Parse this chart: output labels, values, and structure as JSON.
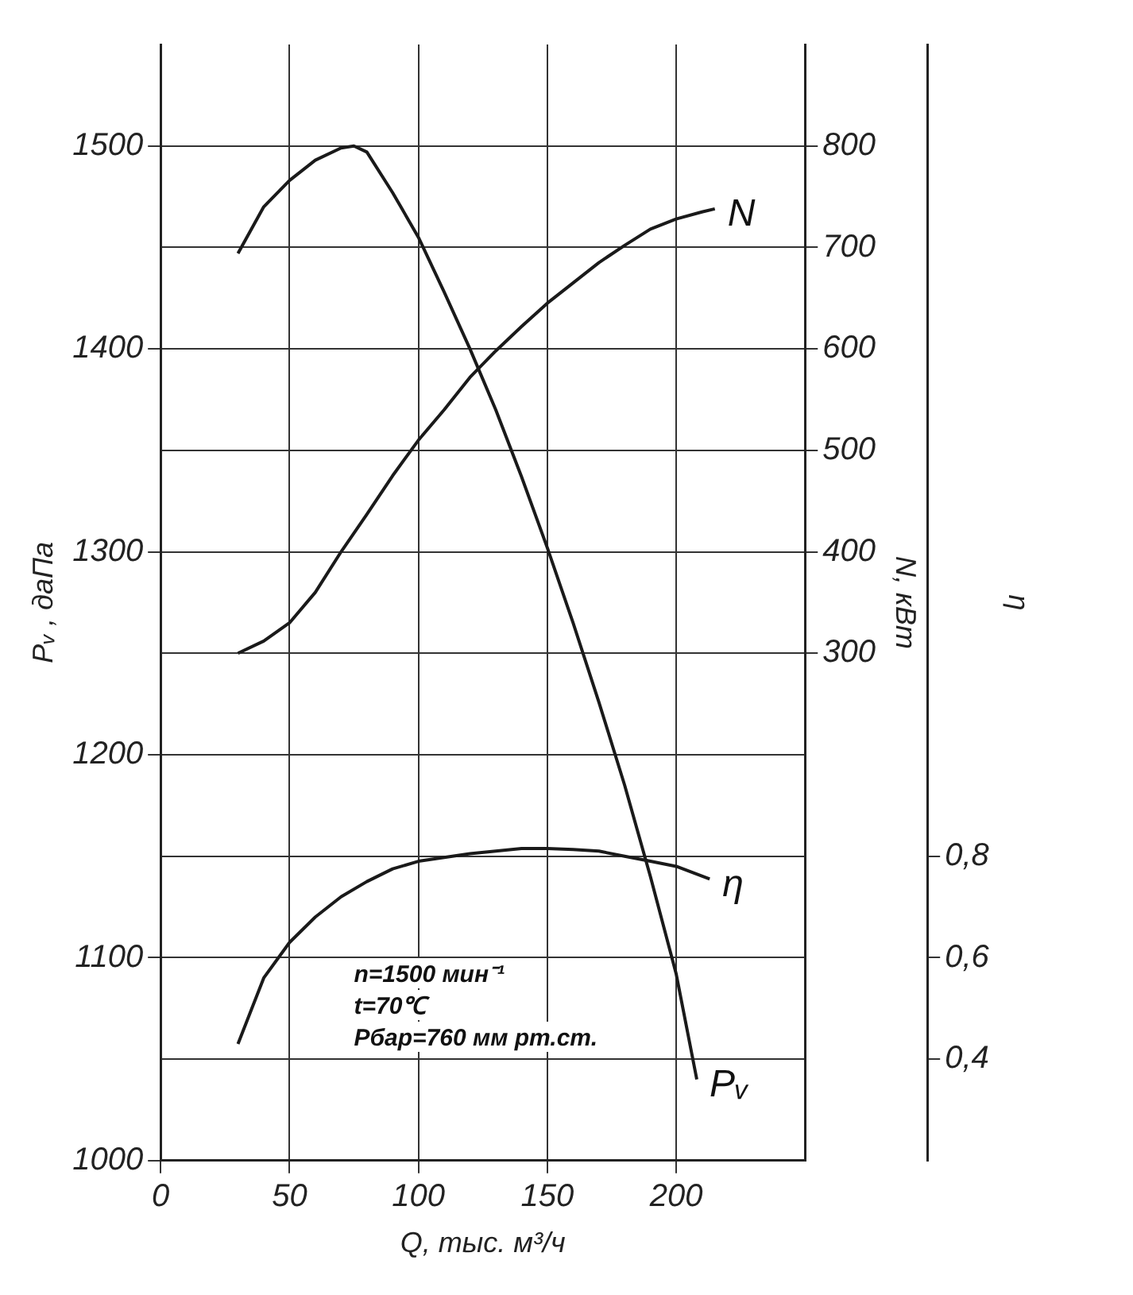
{
  "chart_data": {
    "type": "line",
    "xlabel": "Q, тыс. м³/ч",
    "ylabel": "Pᵥ , даПа",
    "y2label": "N, кВт",
    "y3label": "η",
    "xlim": [
      0,
      250
    ],
    "xticks": [
      0,
      50,
      100,
      150,
      200
    ],
    "ylim": [
      1000,
      1550
    ],
    "yticks": [
      1000,
      1100,
      1200,
      1300,
      1400,
      1500
    ],
    "y2lim": [
      -200,
      900
    ],
    "y2ticks": [
      300,
      400,
      500,
      600,
      700,
      800
    ],
    "y3lim": [
      0.2,
      2.4
    ],
    "y3ticks": [
      {
        "value": 0.4,
        "label": "0,4"
      },
      {
        "value": 0.6,
        "label": "0,6"
      },
      {
        "value": 0.8,
        "label": "0,8"
      }
    ],
    "grid": true,
    "legend": false,
    "series": [
      {
        "name": "Pᵥ",
        "color": "#1a1a1a",
        "x": [
          30,
          40,
          50,
          60,
          70,
          75,
          80,
          90,
          100,
          110,
          120,
          130,
          140,
          150,
          160,
          170,
          180,
          190,
          200,
          208
        ],
        "values": [
          1447,
          1470,
          1483,
          1493,
          1499,
          1500,
          1497,
          1477,
          1455,
          1428,
          1400,
          1370,
          1337,
          1302,
          1265,
          1226,
          1185,
          1140,
          1092,
          1040
        ]
      },
      {
        "name": "N",
        "color": "#1a1a1a",
        "axis": "y2",
        "x": [
          30,
          40,
          50,
          60,
          70,
          80,
          90,
          100,
          110,
          120,
          130,
          140,
          150,
          160,
          170,
          180,
          190,
          200,
          210,
          215
        ],
        "values": [
          300,
          312,
          330,
          360,
          400,
          437,
          475,
          510,
          540,
          572,
          598,
          622,
          645,
          665,
          685,
          702,
          718,
          728,
          735,
          738
        ]
      },
      {
        "name": "η",
        "color": "#1a1a1a",
        "axis": "y3",
        "x": [
          30,
          40,
          50,
          60,
          70,
          80,
          90,
          100,
          120,
          140,
          150,
          160,
          170,
          180,
          190,
          200,
          213
        ],
        "values": [
          0.43,
          0.56,
          0.63,
          0.68,
          0.72,
          0.75,
          0.775,
          0.79,
          0.805,
          0.815,
          0.815,
          0.813,
          0.81,
          0.8,
          0.79,
          0.78,
          0.755
        ]
      }
    ],
    "annotations": [
      "n=1500 мин⁻¹",
      "t=70℃",
      "Pбар=760 мм рт.ст."
    ]
  }
}
